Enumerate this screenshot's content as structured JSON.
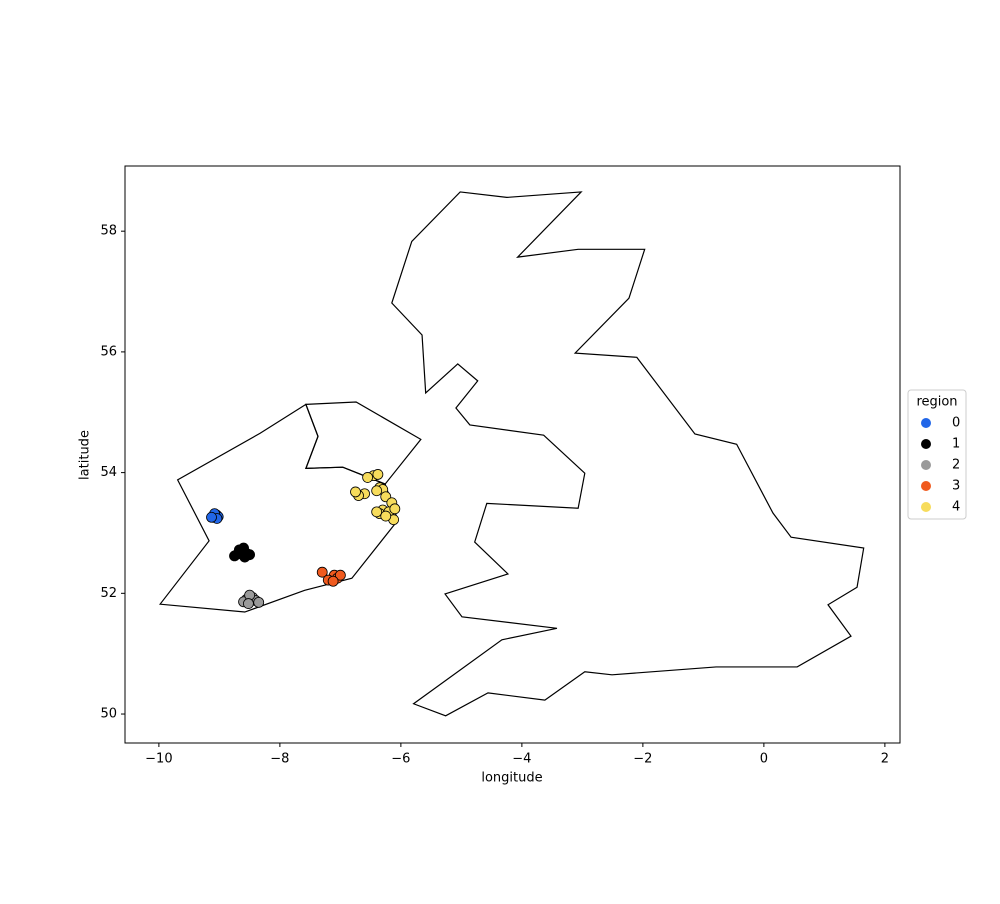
{
  "chart_data": {
    "type": "scatter",
    "xlabel": "longitude",
    "ylabel": "latitude",
    "xlim": [
      -10.56,
      2.25
    ],
    "ylim": [
      49.52,
      59.08
    ],
    "xticks": [
      {
        "value": -10,
        "label": "−10"
      },
      {
        "value": -8,
        "label": "−8"
      },
      {
        "value": -6,
        "label": "−6"
      },
      {
        "value": -4,
        "label": "−4"
      },
      {
        "value": -2,
        "label": "−2"
      },
      0,
      2
    ],
    "yticks": [
      50,
      52,
      54,
      56,
      58
    ],
    "grid": false,
    "legend_title": "region",
    "legend": "right",
    "polygons": [
      {
        "x": [
          -5.02,
          -4.25,
          -3.02,
          -4.07,
          -3.07,
          -1.97,
          -2.23,
          -3.12,
          -2.1,
          -1.14,
          -0.45,
          0.15,
          0.45,
          1.65,
          1.54,
          1.06,
          1.44,
          0.55,
          -0.79,
          -2.51,
          -2.96,
          -3.62,
          -4.56,
          -5.26,
          -5.79,
          -4.33,
          -3.42,
          -4.99,
          -5.27,
          -4.23,
          -4.78,
          -4.58,
          -3.07,
          -2.96,
          -3.64,
          -4.86,
          -5.09,
          -4.73,
          -5.06,
          -5.59,
          -5.65,
          -6.15,
          -5.82
        ],
        "y": [
          58.65,
          58.56,
          58.65,
          57.57,
          57.7,
          57.7,
          56.89,
          55.98,
          55.91,
          54.64,
          54.47,
          53.33,
          52.93,
          52.75,
          52.1,
          51.81,
          51.29,
          50.78,
          50.78,
          50.65,
          50.7,
          50.23,
          50.35,
          49.97,
          50.17,
          51.23,
          51.42,
          51.61,
          51.99,
          52.32,
          52.85,
          53.49,
          53.41,
          53.99,
          54.62,
          54.79,
          55.07,
          55.52,
          55.8,
          55.32,
          56.28,
          56.81,
          57.83
        ]
      },
      {
        "x": [
          -9.98,
          -9.17,
          -9.69,
          -8.33,
          -7.57,
          -7.37,
          -7.57,
          -6.96,
          -6.26,
          -6.05,
          -6.81,
          -7.59,
          -8.58
        ],
        "y": [
          51.82,
          52.87,
          53.88,
          54.65,
          55.13,
          54.6,
          54.07,
          54.09,
          53.81,
          53.21,
          52.25,
          52.05,
          51.69
        ]
      },
      {
        "x": [
          -7.57,
          -6.74,
          -5.67,
          -6.26,
          -6.96,
          -7.57,
          -7.37
        ],
        "y": [
          55.13,
          55.17,
          54.55,
          53.81,
          54.09,
          54.07,
          54.6
        ]
      }
    ],
    "series": [
      {
        "name": "0",
        "color": "#2166e8",
        "x": [
          -9.1,
          -9.05,
          -9.02,
          -9.08,
          -9.04,
          -9.13
        ],
        "values": [
          53.26,
          53.3,
          53.27,
          53.32,
          53.24,
          53.26
        ]
      },
      {
        "name": "1",
        "color": "#000000",
        "x": [
          -8.7,
          -8.62,
          -8.55,
          -8.75,
          -8.6,
          -8.5,
          -8.67,
          -8.58
        ],
        "values": [
          52.65,
          52.7,
          52.66,
          52.62,
          52.75,
          52.64,
          52.72,
          52.6
        ]
      },
      {
        "name": "2",
        "color": "#9a9a9a",
        "x": [
          -8.55,
          -8.45,
          -8.6,
          -8.4,
          -8.5,
          -8.35,
          -8.52
        ],
        "values": [
          51.9,
          51.93,
          51.86,
          51.88,
          51.97,
          51.85,
          51.83
        ]
      },
      {
        "name": "3",
        "color": "#f05a1e",
        "x": [
          -7.3,
          -7.1,
          -7.05,
          -7.2,
          -7.0,
          -7.12
        ],
        "values": [
          52.35,
          52.3,
          52.25,
          52.22,
          52.3,
          52.2
        ]
      },
      {
        "name": "4",
        "color": "#f7dc5c",
        "x": [
          -6.6,
          -6.7,
          -6.45,
          -6.38,
          -6.35,
          -6.3,
          -6.4,
          -6.25,
          -6.15,
          -6.3,
          -6.35,
          -6.2,
          -6.1,
          -6.12,
          -6.25,
          -6.4,
          -6.55,
          -6.75
        ],
        "values": [
          53.65,
          53.62,
          53.95,
          53.97,
          53.75,
          53.72,
          53.7,
          53.6,
          53.5,
          53.38,
          53.32,
          53.35,
          53.4,
          53.22,
          53.28,
          53.35,
          53.92,
          53.68
        ]
      }
    ]
  }
}
